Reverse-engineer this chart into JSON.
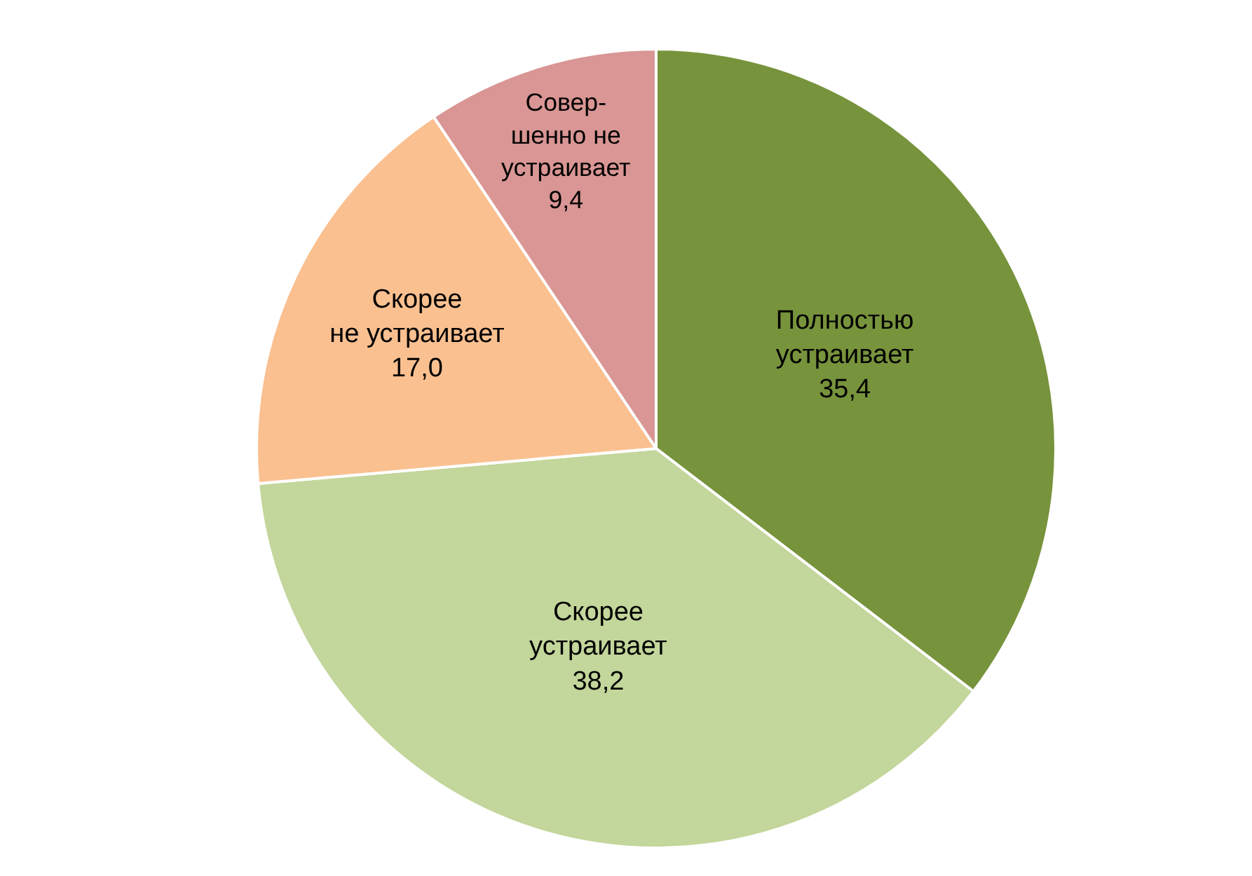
{
  "chart_data": {
    "type": "pie",
    "categories": [
      "Полностью\nустраивает",
      "Скорее\nустраивает",
      "Скорее\nне устраивает",
      "Совер-\nшенно не\nустраивает"
    ],
    "values": [
      35.4,
      38.2,
      17.0,
      9.4
    ],
    "value_labels": [
      "35,4",
      "38,2",
      "17,0",
      "9,4"
    ],
    "colors": [
      "#77933c",
      "#c3d69b",
      "#fac090",
      "#d99694"
    ],
    "legend": false
  }
}
